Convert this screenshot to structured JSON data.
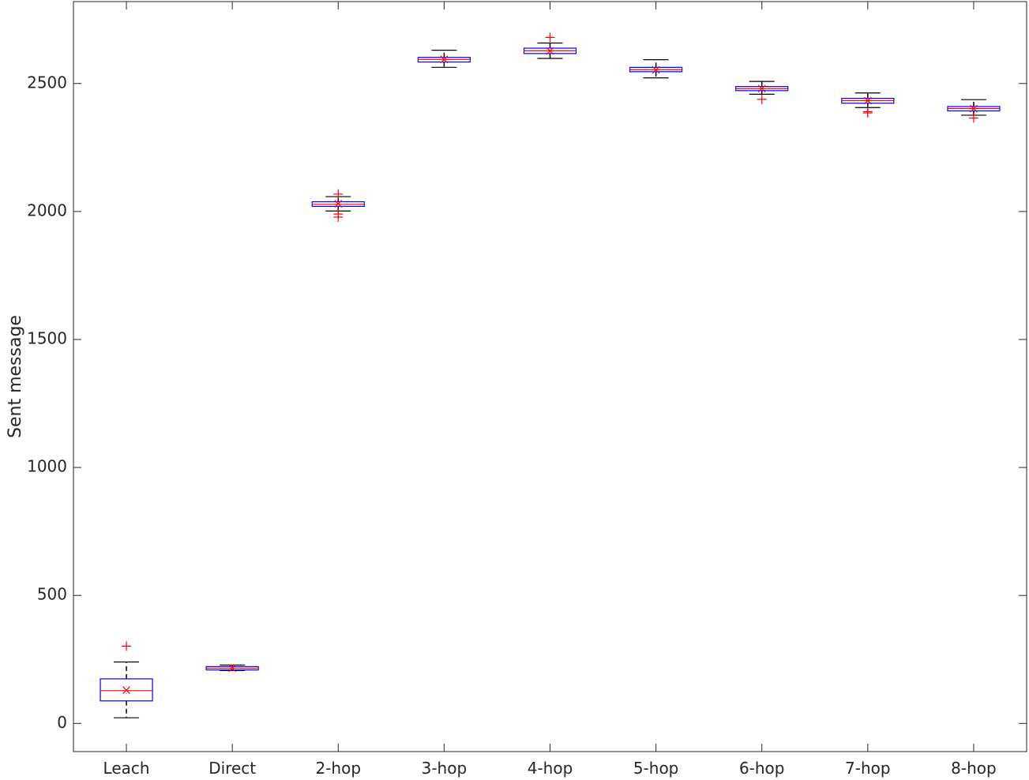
{
  "chart_data": {
    "type": "box",
    "title": "",
    "xlabel": "",
    "ylabel": "Sent message",
    "ylim": [
      -110,
      2820
    ],
    "yticks": [
      0,
      500,
      1000,
      1500,
      2000,
      2500
    ],
    "grid": false,
    "categories": [
      "Leach",
      "Direct",
      "2-hop",
      "3-hop",
      "4-hop",
      "5-hop",
      "6-hop",
      "7-hop",
      "8-hop"
    ],
    "boxes": [
      {
        "q1": 88,
        "median": 128,
        "q3": 174,
        "whisker_low": 22,
        "whisker_high": 240,
        "mean": 130,
        "outliers": [
          302
        ]
      },
      {
        "q1": 209,
        "median": 216,
        "q3": 222,
        "whisker_low": 207,
        "whisker_high": 228,
        "mean": 216,
        "outliers": []
      },
      {
        "q1": 2020,
        "median": 2028,
        "q3": 2038,
        "whisker_low": 2002,
        "whisker_high": 2058,
        "mean": 2030,
        "outliers": [
          2068,
          1990,
          1978
        ]
      },
      {
        "q1": 2584,
        "median": 2594,
        "q3": 2602,
        "whisker_low": 2563,
        "whisker_high": 2630,
        "mean": 2594,
        "outliers": []
      },
      {
        "q1": 2617,
        "median": 2628,
        "q3": 2638,
        "whisker_low": 2598,
        "whisker_high": 2658,
        "mean": 2627,
        "outliers": [
          2680
        ]
      },
      {
        "q1": 2546,
        "median": 2554,
        "q3": 2563,
        "whisker_low": 2522,
        "whisker_high": 2593,
        "mean": 2553,
        "outliers": []
      },
      {
        "q1": 2472,
        "median": 2480,
        "q3": 2488,
        "whisker_low": 2458,
        "whisker_high": 2508,
        "mean": 2480,
        "outliers": [
          2438
        ]
      },
      {
        "q1": 2423,
        "median": 2433,
        "q3": 2442,
        "whisker_low": 2406,
        "whisker_high": 2463,
        "mean": 2433,
        "outliers": [
          2390,
          2385
        ]
      },
      {
        "q1": 2393,
        "median": 2402,
        "q3": 2410,
        "whisker_low": 2376,
        "whisker_high": 2437,
        "mean": 2402,
        "outliers": [
          2365
        ]
      }
    ],
    "colors": {
      "box": "#0000ff",
      "median": "#ff0000",
      "mean": "#ff0000",
      "outlier": "#ff0000",
      "whisker": "#000000",
      "axis": "#262626"
    }
  }
}
